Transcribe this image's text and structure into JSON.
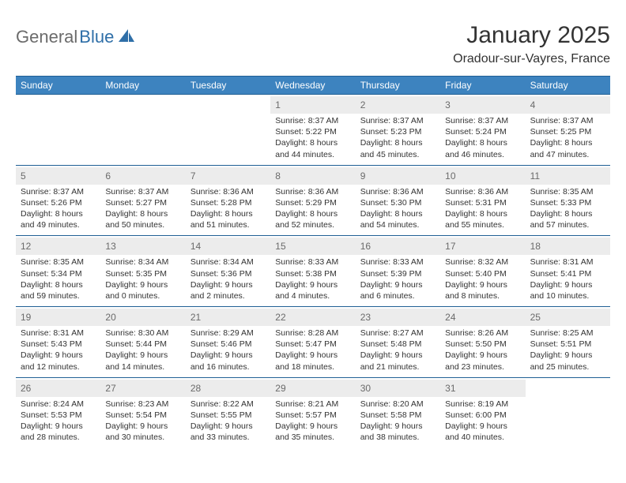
{
  "brand": {
    "general": "General",
    "blue": "Blue"
  },
  "title": "January 2025",
  "location": "Oradour-sur-Vayres, France",
  "colors": {
    "header_bg": "#3d83bf",
    "border": "#1f5f94",
    "daynum_bg": "#ececec",
    "daynum_text": "#6a6a6a",
    "text": "#333333",
    "logo_gray": "#6b6b6b",
    "logo_blue": "#2f6fa8"
  },
  "weekdays": [
    "Sunday",
    "Monday",
    "Tuesday",
    "Wednesday",
    "Thursday",
    "Friday",
    "Saturday"
  ],
  "weeks": [
    [
      null,
      null,
      null,
      {
        "n": "1",
        "sr": "Sunrise: 8:37 AM",
        "ss": "Sunset: 5:22 PM",
        "d1": "Daylight: 8 hours",
        "d2": "and 44 minutes."
      },
      {
        "n": "2",
        "sr": "Sunrise: 8:37 AM",
        "ss": "Sunset: 5:23 PM",
        "d1": "Daylight: 8 hours",
        "d2": "and 45 minutes."
      },
      {
        "n": "3",
        "sr": "Sunrise: 8:37 AM",
        "ss": "Sunset: 5:24 PM",
        "d1": "Daylight: 8 hours",
        "d2": "and 46 minutes."
      },
      {
        "n": "4",
        "sr": "Sunrise: 8:37 AM",
        "ss": "Sunset: 5:25 PM",
        "d1": "Daylight: 8 hours",
        "d2": "and 47 minutes."
      }
    ],
    [
      {
        "n": "5",
        "sr": "Sunrise: 8:37 AM",
        "ss": "Sunset: 5:26 PM",
        "d1": "Daylight: 8 hours",
        "d2": "and 49 minutes."
      },
      {
        "n": "6",
        "sr": "Sunrise: 8:37 AM",
        "ss": "Sunset: 5:27 PM",
        "d1": "Daylight: 8 hours",
        "d2": "and 50 minutes."
      },
      {
        "n": "7",
        "sr": "Sunrise: 8:36 AM",
        "ss": "Sunset: 5:28 PM",
        "d1": "Daylight: 8 hours",
        "d2": "and 51 minutes."
      },
      {
        "n": "8",
        "sr": "Sunrise: 8:36 AM",
        "ss": "Sunset: 5:29 PM",
        "d1": "Daylight: 8 hours",
        "d2": "and 52 minutes."
      },
      {
        "n": "9",
        "sr": "Sunrise: 8:36 AM",
        "ss": "Sunset: 5:30 PM",
        "d1": "Daylight: 8 hours",
        "d2": "and 54 minutes."
      },
      {
        "n": "10",
        "sr": "Sunrise: 8:36 AM",
        "ss": "Sunset: 5:31 PM",
        "d1": "Daylight: 8 hours",
        "d2": "and 55 minutes."
      },
      {
        "n": "11",
        "sr": "Sunrise: 8:35 AM",
        "ss": "Sunset: 5:33 PM",
        "d1": "Daylight: 8 hours",
        "d2": "and 57 minutes."
      }
    ],
    [
      {
        "n": "12",
        "sr": "Sunrise: 8:35 AM",
        "ss": "Sunset: 5:34 PM",
        "d1": "Daylight: 8 hours",
        "d2": "and 59 minutes."
      },
      {
        "n": "13",
        "sr": "Sunrise: 8:34 AM",
        "ss": "Sunset: 5:35 PM",
        "d1": "Daylight: 9 hours",
        "d2": "and 0 minutes."
      },
      {
        "n": "14",
        "sr": "Sunrise: 8:34 AM",
        "ss": "Sunset: 5:36 PM",
        "d1": "Daylight: 9 hours",
        "d2": "and 2 minutes."
      },
      {
        "n": "15",
        "sr": "Sunrise: 8:33 AM",
        "ss": "Sunset: 5:38 PM",
        "d1": "Daylight: 9 hours",
        "d2": "and 4 minutes."
      },
      {
        "n": "16",
        "sr": "Sunrise: 8:33 AM",
        "ss": "Sunset: 5:39 PM",
        "d1": "Daylight: 9 hours",
        "d2": "and 6 minutes."
      },
      {
        "n": "17",
        "sr": "Sunrise: 8:32 AM",
        "ss": "Sunset: 5:40 PM",
        "d1": "Daylight: 9 hours",
        "d2": "and 8 minutes."
      },
      {
        "n": "18",
        "sr": "Sunrise: 8:31 AM",
        "ss": "Sunset: 5:41 PM",
        "d1": "Daylight: 9 hours",
        "d2": "and 10 minutes."
      }
    ],
    [
      {
        "n": "19",
        "sr": "Sunrise: 8:31 AM",
        "ss": "Sunset: 5:43 PM",
        "d1": "Daylight: 9 hours",
        "d2": "and 12 minutes."
      },
      {
        "n": "20",
        "sr": "Sunrise: 8:30 AM",
        "ss": "Sunset: 5:44 PM",
        "d1": "Daylight: 9 hours",
        "d2": "and 14 minutes."
      },
      {
        "n": "21",
        "sr": "Sunrise: 8:29 AM",
        "ss": "Sunset: 5:46 PM",
        "d1": "Daylight: 9 hours",
        "d2": "and 16 minutes."
      },
      {
        "n": "22",
        "sr": "Sunrise: 8:28 AM",
        "ss": "Sunset: 5:47 PM",
        "d1": "Daylight: 9 hours",
        "d2": "and 18 minutes."
      },
      {
        "n": "23",
        "sr": "Sunrise: 8:27 AM",
        "ss": "Sunset: 5:48 PM",
        "d1": "Daylight: 9 hours",
        "d2": "and 21 minutes."
      },
      {
        "n": "24",
        "sr": "Sunrise: 8:26 AM",
        "ss": "Sunset: 5:50 PM",
        "d1": "Daylight: 9 hours",
        "d2": "and 23 minutes."
      },
      {
        "n": "25",
        "sr": "Sunrise: 8:25 AM",
        "ss": "Sunset: 5:51 PM",
        "d1": "Daylight: 9 hours",
        "d2": "and 25 minutes."
      }
    ],
    [
      {
        "n": "26",
        "sr": "Sunrise: 8:24 AM",
        "ss": "Sunset: 5:53 PM",
        "d1": "Daylight: 9 hours",
        "d2": "and 28 minutes."
      },
      {
        "n": "27",
        "sr": "Sunrise: 8:23 AM",
        "ss": "Sunset: 5:54 PM",
        "d1": "Daylight: 9 hours",
        "d2": "and 30 minutes."
      },
      {
        "n": "28",
        "sr": "Sunrise: 8:22 AM",
        "ss": "Sunset: 5:55 PM",
        "d1": "Daylight: 9 hours",
        "d2": "and 33 minutes."
      },
      {
        "n": "29",
        "sr": "Sunrise: 8:21 AM",
        "ss": "Sunset: 5:57 PM",
        "d1": "Daylight: 9 hours",
        "d2": "and 35 minutes."
      },
      {
        "n": "30",
        "sr": "Sunrise: 8:20 AM",
        "ss": "Sunset: 5:58 PM",
        "d1": "Daylight: 9 hours",
        "d2": "and 38 minutes."
      },
      {
        "n": "31",
        "sr": "Sunrise: 8:19 AM",
        "ss": "Sunset: 6:00 PM",
        "d1": "Daylight: 9 hours",
        "d2": "and 40 minutes."
      },
      null
    ]
  ]
}
